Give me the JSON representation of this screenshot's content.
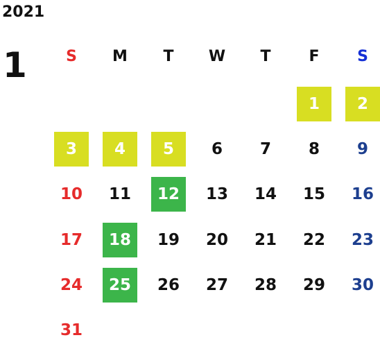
{
  "year": "2021",
  "month": "1",
  "colors": {
    "sunday": "#e62b2b",
    "saturday": "#1d3f8f",
    "saturday_header": "#1530d6",
    "holiday_yellow": "#d8de22",
    "holiday_green": "#3cb54a"
  },
  "weekdays": [
    "S",
    "M",
    "T",
    "W",
    "T",
    "F",
    "S"
  ],
  "weeks": [
    [
      null,
      null,
      null,
      null,
      null,
      {
        "day": "1",
        "highlight": "yellow"
      },
      {
        "day": "2",
        "highlight": "yellow"
      }
    ],
    [
      {
        "day": "3",
        "highlight": "yellow"
      },
      {
        "day": "4",
        "highlight": "yellow"
      },
      {
        "day": "5",
        "highlight": "yellow"
      },
      {
        "day": "6"
      },
      {
        "day": "7"
      },
      {
        "day": "8"
      },
      {
        "day": "9"
      }
    ],
    [
      {
        "day": "10"
      },
      {
        "day": "11"
      },
      {
        "day": "12",
        "highlight": "green"
      },
      {
        "day": "13"
      },
      {
        "day": "14"
      },
      {
        "day": "15"
      },
      {
        "day": "16"
      }
    ],
    [
      {
        "day": "17"
      },
      {
        "day": "18",
        "highlight": "green"
      },
      {
        "day": "19"
      },
      {
        "day": "20"
      },
      {
        "day": "21"
      },
      {
        "day": "22"
      },
      {
        "day": "23"
      }
    ],
    [
      {
        "day": "24"
      },
      {
        "day": "25",
        "highlight": "green"
      },
      {
        "day": "26"
      },
      {
        "day": "27"
      },
      {
        "day": "28"
      },
      {
        "day": "29"
      },
      {
        "day": "30"
      }
    ],
    [
      {
        "day": "31"
      },
      null,
      null,
      null,
      null,
      null,
      null
    ]
  ]
}
